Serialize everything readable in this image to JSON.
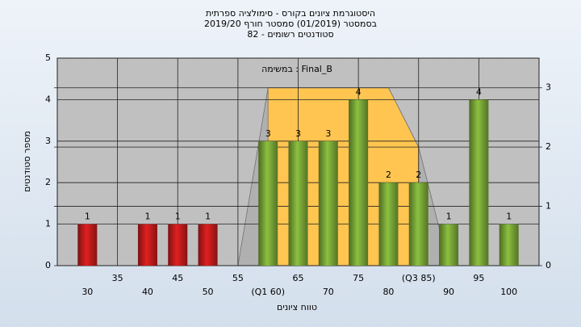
{
  "chart_data": {
    "type": "bar",
    "title": [
      "היסטוגרמת ציונים בקורס - סימולציה ספרתית",
      "בסמסטר  (01/2019)  סמסטר חורף 2019/20",
      "סטודנטים רשומים - 82"
    ],
    "annotation": "Final_B : במשימה",
    "x_label": "טווח ציונים",
    "y_label": "מספר סטודנטים",
    "x": [
      30,
      35,
      40,
      45,
      50,
      55,
      60,
      65,
      70,
      75,
      80,
      85,
      90,
      95,
      100
    ],
    "values": [
      1,
      0,
      1,
      1,
      1,
      0,
      3,
      3,
      3,
      4,
      2,
      2,
      1,
      4,
      1
    ],
    "colors": [
      "#e02020",
      "#e02020",
      "#e02020",
      "#e02020",
      "#e02020",
      "#e02020",
      "#8cc040",
      "#8cc040",
      "#8cc040",
      "#8cc040",
      "#8cc040",
      "#8cc040",
      "#8cc040",
      "#8cc040",
      "#8cc040"
    ],
    "xlim": [
      25,
      105
    ],
    "xticks": [
      30,
      35,
      40,
      45,
      50,
      55,
      {
        "value": 60,
        "label": "(Q1 60)"
      },
      65,
      70,
      75,
      80,
      {
        "value": 85,
        "label": "(Q3 85)"
      },
      90,
      95,
      100
    ],
    "ylim": [
      0,
      5
    ],
    "yticks": [
      0,
      1,
      2,
      3,
      4,
      5
    ],
    "y2lim": [
      0,
      3.5
    ],
    "y2ticks": [
      0,
      1,
      2,
      3
    ],
    "series": [
      {
        "type": "area",
        "axis": "y2",
        "color": "#b0b0b0",
        "x": [
          55,
          60,
          80,
          85,
          90
        ],
        "values": [
          0,
          3,
          3,
          2,
          0
        ]
      },
      {
        "type": "area",
        "axis": "y2",
        "color": "#ffc550",
        "x": [
          60,
          80,
          85
        ],
        "values": [
          3,
          3,
          2
        ]
      }
    ],
    "grid": true
  }
}
